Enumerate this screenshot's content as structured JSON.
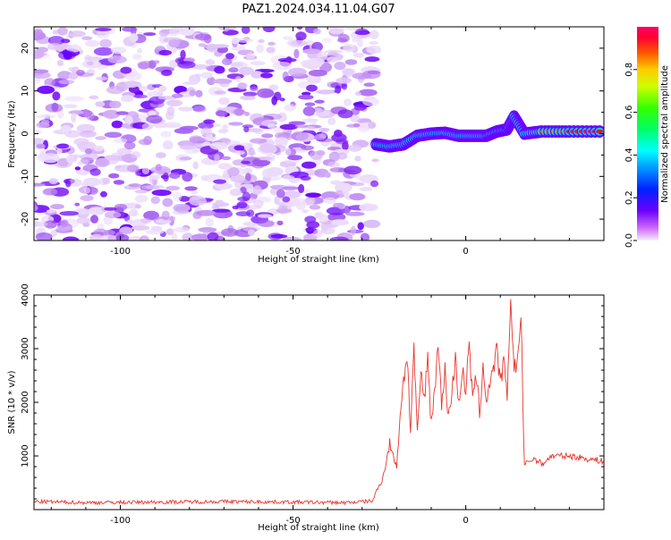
{
  "title": "PAZ1.2024.034.11.04.G07",
  "chart_data": [
    {
      "type": "heatmap",
      "xlabel": "Height of straight line (km)",
      "ylabel": "Frequency (Hz)",
      "xlim": [
        -125,
        40
      ],
      "ylim": [
        -25,
        25
      ],
      "xticks": [
        -100,
        -50,
        0
      ],
      "yticks": [
        -20,
        -10,
        0,
        10,
        20
      ],
      "noise_region_x": [
        -125,
        -26
      ],
      "signal_track": {
        "x": [
          -26,
          -22,
          -18,
          -14,
          -10,
          -6,
          -2,
          2,
          6,
          9,
          12,
          14,
          17,
          22,
          30,
          40
        ],
        "freq": [
          -2.5,
          -3,
          -2.5,
          -0.5,
          0,
          0.2,
          -0.5,
          -0.5,
          -0.5,
          0.5,
          1,
          4,
          0,
          0.5,
          0.5,
          0.5
        ],
        "amplitude": [
          0.3,
          0.9,
          0.55,
          0.5,
          0.4,
          0.35,
          0.4,
          0.9,
          0.5,
          0.45,
          0.6,
          0.3,
          0.5,
          0.9,
          0.95,
          0.95
        ]
      },
      "colorbar": {
        "label": "Normalized spectral amplitude",
        "range": [
          0,
          1
        ],
        "ticks": [
          "0.0",
          "0.2",
          "0.4",
          "0.6",
          "0.8"
        ],
        "colormap": "gist_rainbow_r"
      }
    },
    {
      "type": "line",
      "xlabel": "Height of straight line (km)",
      "ylabel": "SNR (10 * v/v)",
      "xlim": [
        -125,
        40
      ],
      "ylim": [
        0,
        4000
      ],
      "xticks": [
        -100,
        -50,
        0
      ],
      "yticks": [
        1000,
        2000,
        3000,
        4000
      ],
      "color": "#e8362f",
      "series": [
        {
          "x": [
            -125,
            -110,
            -90,
            -70,
            -50,
            -35,
            -27,
            -24,
            -22,
            -20,
            -19,
            -18,
            -17,
            -16,
            -15,
            -14,
            -13,
            -12,
            -11,
            -10,
            -9,
            -8,
            -7,
            -6,
            -5,
            -4,
            -3,
            -2,
            -1,
            0,
            1,
            2,
            3,
            4,
            5,
            6,
            7,
            8,
            9,
            10,
            11,
            12,
            13,
            14,
            15,
            16,
            17,
            18,
            20,
            22,
            25,
            30,
            35,
            40
          ],
          "y": [
            150,
            130,
            140,
            150,
            140,
            130,
            160,
            600,
            1200,
            800,
            1800,
            2400,
            2900,
            1500,
            3000,
            1300,
            2600,
            2000,
            2900,
            1600,
            2200,
            3200,
            1900,
            2600,
            1700,
            2200,
            2800,
            2000,
            2600,
            2200,
            3100,
            2000,
            2500,
            1800,
            2700,
            2000,
            2400,
            2600,
            3000,
            2300,
            2800,
            2000,
            4000,
            2600,
            2800,
            3600,
            800,
            900,
            950,
            850,
            1000,
            1000,
            950,
            900
          ]
        }
      ]
    }
  ]
}
